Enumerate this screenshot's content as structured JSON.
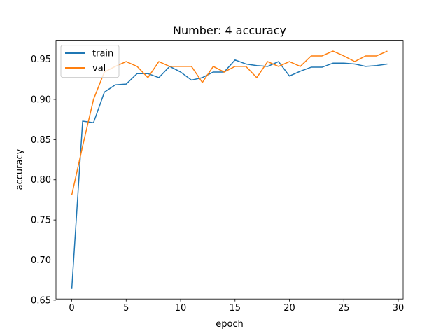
{
  "chart_data": {
    "type": "line",
    "title": "Number: 4 accuracy",
    "xlabel": "epoch",
    "ylabel": "accuracy",
    "xlim": [
      -1.45,
      30.45
    ],
    "ylim": [
      0.6515,
      0.9735
    ],
    "x_ticks": [
      0,
      5,
      10,
      15,
      20,
      25,
      30
    ],
    "y_ticks": [
      0.65,
      0.7,
      0.75,
      0.8,
      0.85,
      0.9,
      0.95
    ],
    "y_tick_labels": [
      "0.65",
      "0.70",
      "0.75",
      "0.80",
      "0.85",
      "0.90",
      "0.95"
    ],
    "x": [
      0,
      1,
      2,
      3,
      4,
      5,
      6,
      7,
      8,
      9,
      10,
      11,
      12,
      13,
      14,
      15,
      16,
      17,
      18,
      19,
      20,
      21,
      22,
      23,
      24,
      25,
      26,
      27,
      28,
      29
    ],
    "series": [
      {
        "name": "train",
        "color": "#1f77b4",
        "values": [
          0.664,
          0.873,
          0.871,
          0.909,
          0.918,
          0.919,
          0.932,
          0.932,
          0.927,
          0.941,
          0.934,
          0.924,
          0.927,
          0.934,
          0.934,
          0.949,
          0.944,
          0.942,
          0.941,
          0.947,
          0.929,
          0.935,
          0.94,
          0.94,
          0.945,
          0.945,
          0.944,
          0.941,
          0.942,
          0.944
        ]
      },
      {
        "name": "val",
        "color": "#ff7f0e",
        "values": [
          0.781,
          0.842,
          0.9,
          0.934,
          0.941,
          0.947,
          0.941,
          0.927,
          0.947,
          0.941,
          0.941,
          0.941,
          0.921,
          0.941,
          0.934,
          0.941,
          0.941,
          0.927,
          0.947,
          0.941,
          0.947,
          0.941,
          0.954,
          0.954,
          0.96,
          0.954,
          0.947,
          0.954,
          0.954,
          0.96
        ]
      }
    ],
    "grid": false,
    "legend_position": "top-left"
  }
}
